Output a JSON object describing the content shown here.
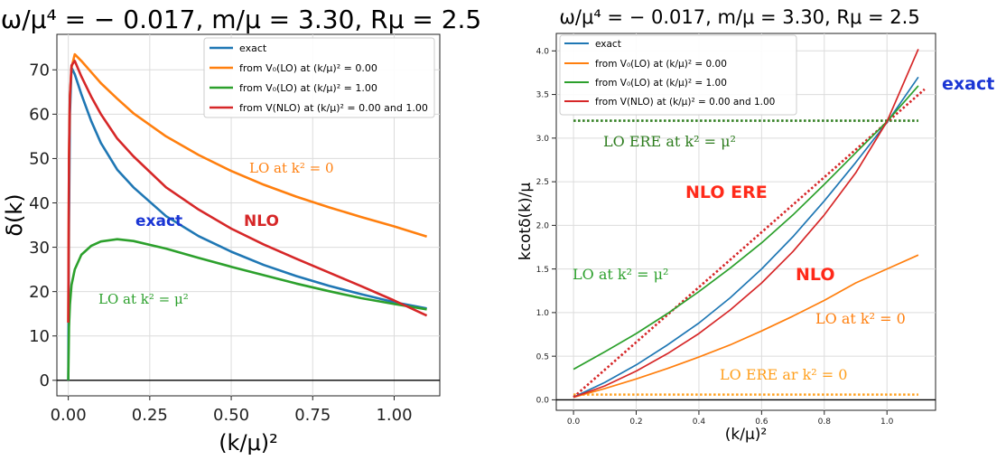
{
  "chart_data": [
    {
      "type": "line",
      "title": "ω/μ⁴ = − 0.017, m/μ = 3.30, Rμ = 2.5",
      "xlabel": "(k/μ)²",
      "ylabel": "δ(k)",
      "xlim": [
        -0.035,
        1.14
      ],
      "ylim": [
        -3.5,
        78
      ],
      "xticks": [
        0.0,
        0.25,
        0.5,
        0.75,
        1.0
      ],
      "xtick_labels": [
        "0.00",
        "0.25",
        "0.50",
        "0.75",
        "1.00"
      ],
      "yticks": [
        0,
        10,
        20,
        30,
        40,
        50,
        60,
        70
      ],
      "ytick_labels": [
        "0",
        "10",
        "20",
        "30",
        "40",
        "50",
        "60",
        "70"
      ],
      "grid": true,
      "legend_position": "top-right",
      "hline": 0,
      "series": [
        {
          "name": "exact",
          "color": "#1f77b4",
          "x": [
            0.0,
            0.002,
            0.005,
            0.01,
            0.02,
            0.04,
            0.07,
            0.1,
            0.15,
            0.2,
            0.3,
            0.4,
            0.5,
            0.6,
            0.7,
            0.8,
            0.9,
            1.0,
            1.1
          ],
          "y": [
            0,
            35,
            60,
            70.5,
            69,
            64.5,
            58.5,
            53.5,
            47.5,
            43.5,
            37,
            32.5,
            29,
            26,
            23.5,
            21.3,
            19.4,
            17.6,
            16.2
          ]
        },
        {
          "name": "from V₀(LO) at (k/μ)² = 0.00",
          "color": "#ff7f0e",
          "x": [
            0.0,
            0.002,
            0.005,
            0.01,
            0.02,
            0.04,
            0.07,
            0.1,
            0.15,
            0.2,
            0.3,
            0.4,
            0.5,
            0.6,
            0.7,
            0.8,
            0.9,
            1.0,
            1.1
          ],
          "y": [
            13,
            50,
            64,
            70.5,
            73.5,
            72,
            69.5,
            67,
            63.5,
            60.2,
            55,
            50.8,
            47.2,
            44.1,
            41.4,
            39,
            36.8,
            34.7,
            32.4
          ]
        },
        {
          "name": "from V₀(LO) at (k/μ)² = 1.00",
          "color": "#2ca02c",
          "x": [
            0.0,
            0.002,
            0.005,
            0.01,
            0.02,
            0.04,
            0.07,
            0.1,
            0.15,
            0.2,
            0.3,
            0.4,
            0.5,
            0.6,
            0.7,
            0.8,
            0.9,
            1.0,
            1.1
          ],
          "y": [
            0,
            12,
            17,
            21.5,
            25,
            28.3,
            30.3,
            31.3,
            31.8,
            31.4,
            29.7,
            27.6,
            25.6,
            23.7,
            21.8,
            20.1,
            18.5,
            17.2,
            16.0
          ]
        },
        {
          "name": "from V(NLO) at (k/μ)² = 0.00 and 1.00",
          "color": "#d62728",
          "x": [
            0.0,
            0.002,
            0.005,
            0.01,
            0.02,
            0.04,
            0.07,
            0.1,
            0.15,
            0.2,
            0.3,
            0.4,
            0.5,
            0.6,
            0.7,
            0.8,
            0.9,
            1.0,
            1.1
          ],
          "y": [
            13,
            50,
            64,
            71,
            72,
            68.5,
            64,
            60,
            54.5,
            50.5,
            43.5,
            38.5,
            34.2,
            30.6,
            27.4,
            24.3,
            21.2,
            18,
            14.6
          ]
        }
      ],
      "annotations": [
        {
          "text": "LO at k² = 0",
          "color": "#ff7f0e",
          "x": 0.55,
          "y": 46
        },
        {
          "text": "exact",
          "color": "#1a35d4",
          "x": 0.1,
          "y": 38
        },
        {
          "text": "NLO",
          "color": "#d62728",
          "x": 0.39,
          "y": 38
        },
        {
          "text": "LO at k² = μ²",
          "color": "#2ca02c",
          "x": 0.055,
          "y": 19
        }
      ]
    },
    {
      "type": "line",
      "title": "ω/μ⁴ = − 0.017, m/μ = 3.30, Rμ = 2.5",
      "xlabel": "(k/μ)²",
      "ylabel": "kcotδ(k)/μ",
      "xlim": [
        -0.055,
        1.155
      ],
      "ylim": [
        -0.12,
        4.2
      ],
      "xticks": [
        0.0,
        0.2,
        0.4,
        0.6,
        0.8,
        1.0
      ],
      "xtick_labels": [
        "0.0",
        "0.2",
        "0.4",
        "0.6",
        "0.8",
        "1.0"
      ],
      "yticks": [
        0.0,
        0.5,
        1.0,
        1.5,
        2.0,
        2.5,
        3.0,
        3.5,
        4.0
      ],
      "ytick_labels": [
        "0.0",
        "0.5",
        "1.0",
        "1.5",
        "2.0",
        "2.5",
        "3.0",
        "3.5",
        "4.0"
      ],
      "grid": true,
      "legend_position": "top-left",
      "hline": 0,
      "series": [
        {
          "name": "exact",
          "color": "#1f77b4",
          "x": [
            0.0,
            0.1,
            0.2,
            0.3,
            0.4,
            0.5,
            0.6,
            0.7,
            0.8,
            0.9,
            1.0,
            1.1
          ],
          "y": [
            0.03,
            0.2,
            0.4,
            0.63,
            0.88,
            1.17,
            1.5,
            1.87,
            2.28,
            2.72,
            3.18,
            3.7
          ]
        },
        {
          "name": "from V₀(LO) at (k/μ)² = 0.00",
          "color": "#ff7f0e",
          "x": [
            0.0,
            0.1,
            0.2,
            0.3,
            0.4,
            0.5,
            0.6,
            0.7,
            0.8,
            0.9,
            1.0,
            1.1
          ],
          "y": [
            0.03,
            0.13,
            0.24,
            0.36,
            0.49,
            0.63,
            0.79,
            0.96,
            1.14,
            1.34,
            1.5,
            1.66
          ]
        },
        {
          "name": "from V₀(LO) at (k/μ)² = 1.00",
          "color": "#2ca02c",
          "x": [
            0.0,
            0.1,
            0.2,
            0.3,
            0.4,
            0.5,
            0.6,
            0.7,
            0.8,
            0.9,
            1.0,
            1.1
          ],
          "y": [
            0.35,
            0.55,
            0.76,
            0.99,
            1.24,
            1.51,
            1.8,
            2.12,
            2.47,
            2.83,
            3.19,
            3.6
          ]
        },
        {
          "name": "from V(NLO) at (k/μ)² = 0.00 and 1.00",
          "color": "#d62728",
          "x": [
            0.0,
            0.1,
            0.2,
            0.3,
            0.4,
            0.5,
            0.6,
            0.7,
            0.8,
            0.9,
            1.0,
            1.1
          ],
          "y": [
            0.03,
            0.16,
            0.33,
            0.53,
            0.76,
            1.03,
            1.34,
            1.7,
            2.12,
            2.6,
            3.19,
            4.02
          ]
        }
      ],
      "reference_lines": [
        {
          "label": "LO ERE at k² = μ²",
          "color": "#2e7d1f",
          "style": "dotted",
          "y": 3.2
        },
        {
          "label": "LO ERE ar k² = 0",
          "color": "#ff9f1c",
          "style": "dotted",
          "y": 0.06
        },
        {
          "label": "NLO ERE",
          "color": "#d62728",
          "style": "dotted",
          "x_start": 0.0,
          "y_start": 0.03,
          "x_end": 1.12,
          "y_end": 3.56
        }
      ],
      "annotations": [
        {
          "text": "LO ERE at k² = μ²",
          "color": "#2e7d1f",
          "x": 0.1,
          "y": 2.97
        },
        {
          "text": "NLO ERE",
          "color": "#ff2a1a",
          "x": 0.34,
          "y": 2.3
        },
        {
          "text": "LO at k² = μ²",
          "color": "#2ca02c",
          "x": 0.0,
          "y": 1.37
        },
        {
          "text": "NLO",
          "color": "#ff2a1a",
          "x": 0.69,
          "y": 1.37
        },
        {
          "text": "LO at k² = 0",
          "color": "#ff7f0e",
          "x": 0.75,
          "y": 0.87
        },
        {
          "text": "LO ERE ar k² = 0",
          "color": "#ff9f1c",
          "x": 0.45,
          "y": 0.24
        },
        {
          "text": "exact",
          "color": "#1a35d4",
          "x": 1.07,
          "y": 3.55
        }
      ]
    }
  ]
}
